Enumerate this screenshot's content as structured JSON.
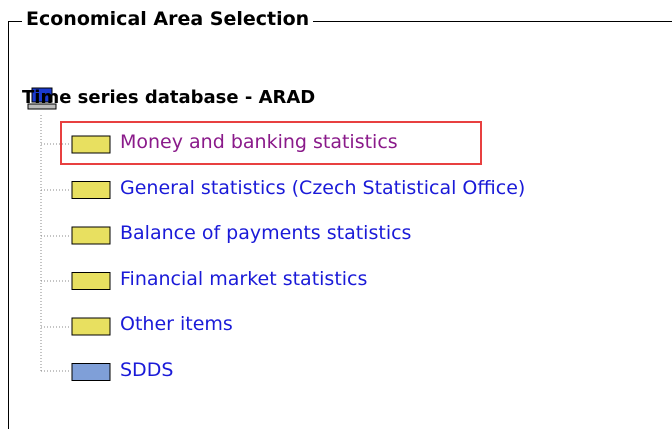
{
  "fieldset": {
    "legend": "Economical Area Selection"
  },
  "tree": {
    "root": "Time series database - ARAD",
    "items": [
      {
        "label": "Money and banking statistics",
        "highlighted": true
      },
      {
        "label": "General statistics (Czech Statistical Office)"
      },
      {
        "label": "Balance of payments statistics"
      },
      {
        "label": "Financial market statistics"
      },
      {
        "label": "Other items"
      },
      {
        "label": "SDDS"
      }
    ]
  }
}
